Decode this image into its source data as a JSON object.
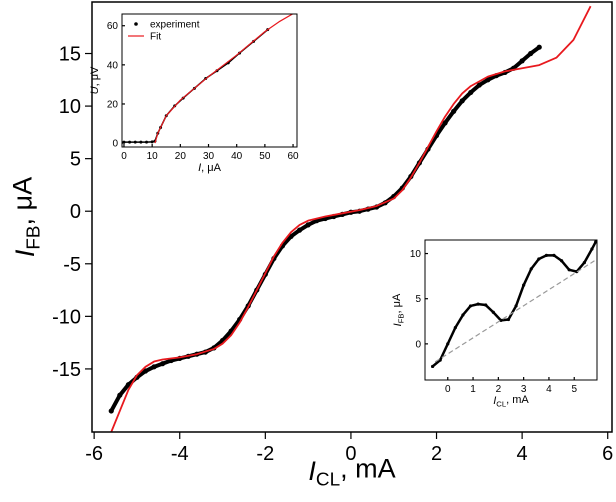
{
  "chart_data": [
    {
      "type": "line",
      "xlabel": {
        "symbol": "I",
        "subscript": "CL",
        "unit": ", mA"
      },
      "ylabel": {
        "symbol": "I",
        "subscript": "FB",
        "unit": ", μA"
      },
      "xlim": [
        -6.05,
        6.1
      ],
      "xticks": [
        -6,
        -4,
        -2,
        0,
        2,
        4,
        6
      ],
      "ylim": [
        -21,
        19.9
      ],
      "yticks": [
        -15,
        -10,
        -5,
        0,
        5,
        10,
        15
      ],
      "series": [
        {
          "name": "experiment",
          "style": "markers",
          "color": "#000000",
          "x": [
            -5.6,
            -5.4,
            -5.2,
            -5,
            -4.8,
            -4.6,
            -4.4,
            -4.2,
            -4,
            -3.8,
            -3.6,
            -3.4,
            -3.2,
            -3,
            -2.8,
            -2.6,
            -2.4,
            -2.2,
            -2,
            -1.8,
            -1.6,
            -1.4,
            -1.2,
            -1,
            -0.8,
            -0.6,
            -0.4,
            -0.2,
            0,
            0.2,
            0.4,
            0.6,
            0.8,
            1,
            1.2,
            1.4,
            1.6,
            1.8,
            2,
            2.2,
            2.4,
            2.6,
            2.8,
            3,
            3.2,
            3.4,
            3.6,
            3.8,
            4,
            4.2,
            4.4
          ],
          "values": [
            -19,
            -17.5,
            -16.5,
            -15.8,
            -15.2,
            -14.8,
            -14.5,
            -14.2,
            -14,
            -13.8,
            -13.6,
            -13.4,
            -13,
            -12.3,
            -11.4,
            -10.3,
            -9,
            -7.5,
            -6,
            -4.5,
            -3.3,
            -2.4,
            -1.8,
            -1.3,
            -0.9,
            -0.7,
            -0.5,
            -0.3,
            -0.1,
            0,
            0.2,
            0.4,
            0.8,
            1.4,
            2.2,
            3.3,
            4.6,
            5.9,
            7.2,
            8.4,
            9.5,
            10.5,
            11.3,
            12,
            12.5,
            12.9,
            13.2,
            13.6,
            14.3,
            15,
            15.6
          ]
        },
        {
          "name": "Fit",
          "style": "line",
          "color": "#e8191e",
          "x": [
            -5.6,
            -5.4,
            -5.2,
            -5,
            -4.8,
            -4.6,
            -4.4,
            -4,
            -3.6,
            -3.2,
            -3,
            -2.8,
            -2.6,
            -2.4,
            -2.2,
            -2,
            -1.8,
            -1.6,
            -1.4,
            -1.2,
            -1,
            -0.6,
            -0.2,
            0.2,
            0.6,
            1,
            1.2,
            1.4,
            1.6,
            1.8,
            2,
            2.2,
            2.4,
            2.6,
            2.8,
            3.2,
            3.6,
            4,
            4.4,
            4.8,
            5.2,
            5.6
          ],
          "values": [
            -21,
            -19,
            -17,
            -15.6,
            -14.8,
            -14.3,
            -14.1,
            -13.9,
            -13.6,
            -13.1,
            -12.6,
            -11.8,
            -10.6,
            -9.1,
            -7.5,
            -5.9,
            -4.3,
            -3,
            -2,
            -1.3,
            -0.9,
            -0.5,
            -0.2,
            0.1,
            0.5,
            1.2,
            2,
            3.2,
            4.6,
            6.1,
            7.6,
            9,
            10.2,
            11.2,
            11.9,
            12.8,
            13.3,
            13.6,
            13.9,
            14.6,
            16.3,
            19.5
          ]
        }
      ]
    },
    {
      "type": "line",
      "xlabel": {
        "symbol": "I",
        "unit": ", μA"
      },
      "ylabel": {
        "symbol": "U",
        "unit": ", μV"
      },
      "xlim": [
        -0.7,
        61.4
      ],
      "xticks": [
        0,
        10,
        20,
        30,
        40,
        50,
        60
      ],
      "ylim": [
        -2,
        66
      ],
      "yticks": [
        0,
        20,
        40,
        60
      ],
      "legend": "upper left",
      "series": [
        {
          "name": "experiment",
          "style": "markers",
          "color": "#000000",
          "x": [
            0,
            2,
            4,
            6,
            8,
            10,
            11,
            12,
            13,
            15,
            18,
            21,
            25,
            29,
            33,
            37,
            41,
            46,
            51
          ],
          "values": [
            0.5,
            0.5,
            0.5,
            0.5,
            0.5,
            0.6,
            1,
            5,
            8,
            14,
            19,
            23,
            28,
            33,
            37,
            41,
            46,
            52,
            58
          ]
        },
        {
          "name": "Fit",
          "style": "line",
          "color": "#e8191e",
          "x": [
            11,
            12,
            15,
            20,
            30,
            40,
            50,
            55,
            61
          ],
          "values": [
            0,
            5,
            14,
            22,
            34,
            45,
            57,
            62,
            67
          ]
        }
      ]
    },
    {
      "type": "line",
      "xlabel": {
        "symbol": "I",
        "subscript": "CL",
        "unit": ", mA"
      },
      "ylabel": {
        "symbol": "I",
        "subscript": "FB",
        "unit": ", μA"
      },
      "xlim": [
        -0.9,
        5.9
      ],
      "xticks": [
        0,
        1,
        2,
        3,
        4,
        5
      ],
      "ylim": [
        -4,
        11.5
      ],
      "yticks": [
        0,
        5,
        10
      ],
      "series": [
        {
          "style": "markers",
          "color": "#000000",
          "x": [
            -0.6,
            -0.3,
            0,
            0.3,
            0.6,
            0.9,
            1.2,
            1.5,
            1.8,
            2.1,
            2.4,
            2.7,
            3,
            3.3,
            3.6,
            3.9,
            4.2,
            4.5,
            4.8,
            5.1,
            5.4,
            5.7,
            5.85
          ],
          "values": [
            -2.5,
            -1.8,
            0,
            1.8,
            3.2,
            4.2,
            4.4,
            4.3,
            3.5,
            2.6,
            2.7,
            4.2,
            6.5,
            8.3,
            9.4,
            9.8,
            9.8,
            9.2,
            8.2,
            8,
            9,
            10.5,
            11.3
          ]
        },
        {
          "style": "dashed",
          "color": "#999999",
          "x": [
            -0.5,
            5.8
          ],
          "values": [
            -2,
            9.2
          ]
        }
      ]
    }
  ]
}
